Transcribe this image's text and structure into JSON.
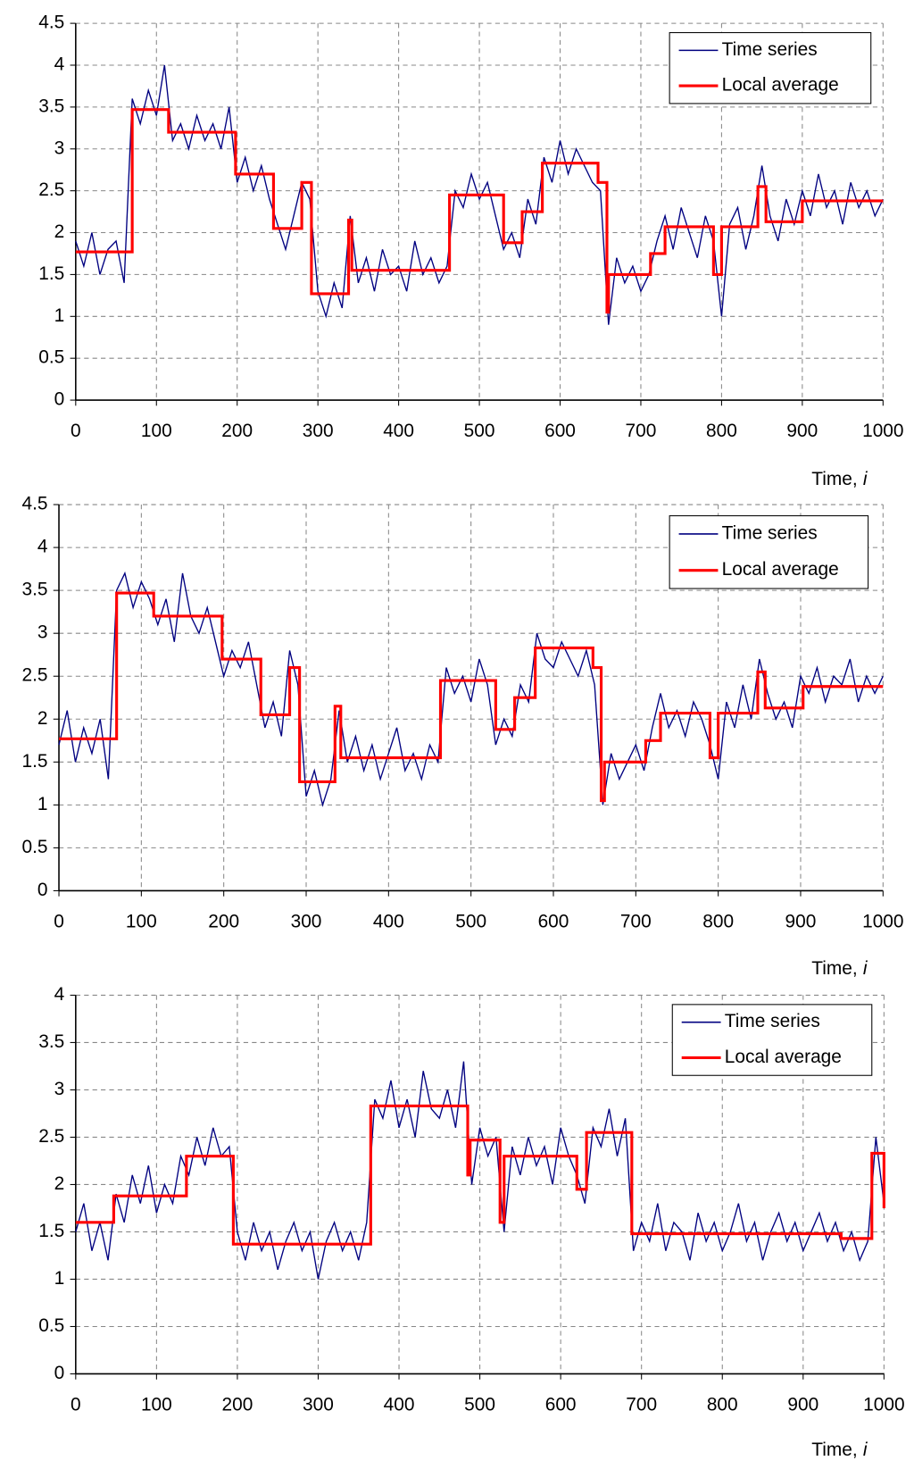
{
  "chart_data": [
    {
      "type": "line",
      "xlabel": {
        "text": "Time,",
        "variable": "i"
      },
      "xlim": [
        0,
        1000
      ],
      "xticks": [
        0,
        100,
        200,
        300,
        400,
        500,
        600,
        700,
        800,
        900,
        1000
      ],
      "ylim": [
        0,
        4.5
      ],
      "yticks": [
        0,
        0.5,
        1,
        1.5,
        2,
        2.5,
        3,
        3.5,
        4,
        4.5
      ],
      "grid": true,
      "legend": "upper right",
      "series": [
        {
          "name": "Time series",
          "color": "#000080",
          "x": [
            0,
            10,
            20,
            30,
            40,
            50,
            60,
            70,
            80,
            90,
            100,
            110,
            120,
            130,
            140,
            150,
            160,
            170,
            180,
            190,
            200,
            210,
            220,
            230,
            240,
            250,
            260,
            270,
            280,
            290,
            300,
            310,
            320,
            330,
            340,
            350,
            360,
            370,
            380,
            390,
            400,
            410,
            420,
            430,
            440,
            450,
            460,
            470,
            480,
            490,
            500,
            510,
            520,
            530,
            540,
            550,
            560,
            570,
            580,
            590,
            600,
            610,
            620,
            630,
            640,
            650,
            660,
            670,
            680,
            690,
            700,
            710,
            720,
            730,
            740,
            750,
            760,
            770,
            780,
            790,
            800,
            810,
            820,
            830,
            840,
            850,
            860,
            870,
            880,
            890,
            900,
            910,
            920,
            930,
            940,
            950,
            960,
            970,
            980,
            990,
            1000
          ],
          "values": [
            1.9,
            1.6,
            2.0,
            1.5,
            1.8,
            1.9,
            1.4,
            3.6,
            3.3,
            3.7,
            3.4,
            4.0,
            3.1,
            3.3,
            3.0,
            3.4,
            3.1,
            3.3,
            3.0,
            3.5,
            2.6,
            2.9,
            2.5,
            2.8,
            2.4,
            2.1,
            1.8,
            2.2,
            2.6,
            2.4,
            1.3,
            1.0,
            1.4,
            1.1,
            2.2,
            1.4,
            1.7,
            1.3,
            1.8,
            1.5,
            1.6,
            1.3,
            1.9,
            1.5,
            1.7,
            1.4,
            1.6,
            2.5,
            2.3,
            2.7,
            2.4,
            2.6,
            2.2,
            1.8,
            2.0,
            1.7,
            2.4,
            2.1,
            2.9,
            2.6,
            3.1,
            2.7,
            3.0,
            2.8,
            2.6,
            2.5,
            0.9,
            1.7,
            1.4,
            1.6,
            1.3,
            1.5,
            1.9,
            2.2,
            1.8,
            2.3,
            2.0,
            1.7,
            2.2,
            1.9,
            1.0,
            2.1,
            2.3,
            1.8,
            2.2,
            2.8,
            2.2,
            1.9,
            2.4,
            2.1,
            2.5,
            2.2,
            2.7,
            2.3,
            2.5,
            2.1,
            2.6,
            2.3,
            2.5,
            2.2,
            2.4
          ]
        },
        {
          "name": "Local average",
          "color": "#ff0000",
          "x": [
            0,
            70,
            70,
            115,
            115,
            198,
            198,
            245,
            245,
            280,
            280,
            292,
            292,
            338,
            338,
            342,
            342,
            463,
            463,
            530,
            530,
            553,
            553,
            578,
            578,
            647,
            647,
            658,
            658,
            660,
            660,
            712,
            712,
            730,
            730,
            790,
            790,
            800,
            800,
            845,
            845,
            855,
            855,
            900,
            900,
            1000
          ],
          "values": [
            1.77,
            1.77,
            3.47,
            3.47,
            3.2,
            3.2,
            2.7,
            2.7,
            2.05,
            2.05,
            2.6,
            2.6,
            1.27,
            1.27,
            2.15,
            2.15,
            1.55,
            1.55,
            2.45,
            2.45,
            1.88,
            1.88,
            2.25,
            2.25,
            2.83,
            2.83,
            2.6,
            2.6,
            1.05,
            1.05,
            1.5,
            1.5,
            1.75,
            1.75,
            2.07,
            2.07,
            1.5,
            1.5,
            2.07,
            2.07,
            2.55,
            2.55,
            2.13,
            2.13,
            2.38,
            2.38
          ]
        }
      ]
    },
    {
      "type": "line",
      "xlabel": {
        "text": "Time,",
        "variable": "i"
      },
      "xlim": [
        0,
        1000
      ],
      "xticks": [
        0,
        100,
        200,
        300,
        400,
        500,
        600,
        700,
        800,
        900,
        1000
      ],
      "ylim": [
        0,
        4.5
      ],
      "yticks": [
        0,
        0.5,
        1,
        1.5,
        2,
        2.5,
        3,
        3.5,
        4,
        4.5
      ],
      "grid": true,
      "legend": "upper right",
      "series": [
        {
          "name": "Time series",
          "color": "#000080",
          "x": [
            0,
            10,
            20,
            30,
            40,
            50,
            60,
            70,
            80,
            90,
            100,
            110,
            120,
            130,
            140,
            150,
            160,
            170,
            180,
            190,
            200,
            210,
            220,
            230,
            240,
            250,
            260,
            270,
            280,
            290,
            300,
            310,
            320,
            330,
            340,
            350,
            360,
            370,
            380,
            390,
            400,
            410,
            420,
            430,
            440,
            450,
            460,
            470,
            480,
            490,
            500,
            510,
            520,
            530,
            540,
            550,
            560,
            570,
            580,
            590,
            600,
            610,
            620,
            630,
            640,
            650,
            660,
            670,
            680,
            690,
            700,
            710,
            720,
            730,
            740,
            750,
            760,
            770,
            780,
            790,
            800,
            810,
            820,
            830,
            840,
            850,
            860,
            870,
            880,
            890,
            900,
            910,
            920,
            930,
            940,
            950,
            960,
            970,
            980,
            990,
            1000
          ],
          "values": [
            1.7,
            2.1,
            1.5,
            1.9,
            1.6,
            2.0,
            1.3,
            3.5,
            3.7,
            3.3,
            3.6,
            3.4,
            3.1,
            3.4,
            2.9,
            3.7,
            3.2,
            3.0,
            3.3,
            2.9,
            2.5,
            2.8,
            2.6,
            2.9,
            2.4,
            1.9,
            2.2,
            1.8,
            2.8,
            2.4,
            1.1,
            1.4,
            1.0,
            1.3,
            2.1,
            1.5,
            1.8,
            1.4,
            1.7,
            1.3,
            1.6,
            1.9,
            1.4,
            1.6,
            1.3,
            1.7,
            1.5,
            2.6,
            2.3,
            2.5,
            2.2,
            2.7,
            2.4,
            1.7,
            2.0,
            1.8,
            2.4,
            2.2,
            3.0,
            2.7,
            2.6,
            2.9,
            2.7,
            2.5,
            2.8,
            2.4,
            1.0,
            1.6,
            1.3,
            1.5,
            1.7,
            1.4,
            1.9,
            2.3,
            1.9,
            2.1,
            1.8,
            2.2,
            2.0,
            1.7,
            1.3,
            2.2,
            1.9,
            2.4,
            2.0,
            2.7,
            2.3,
            2.0,
            2.2,
            1.9,
            2.5,
            2.3,
            2.6,
            2.2,
            2.5,
            2.4,
            2.7,
            2.2,
            2.5,
            2.3,
            2.5
          ]
        },
        {
          "name": "Local average",
          "color": "#ff0000",
          "x": [
            0,
            70,
            70,
            115,
            115,
            198,
            198,
            245,
            245,
            280,
            280,
            292,
            292,
            335,
            335,
            342,
            342,
            463,
            463,
            530,
            530,
            553,
            553,
            578,
            578,
            648,
            648,
            658,
            658,
            662,
            662,
            712,
            712,
            730,
            730,
            790,
            790,
            800,
            800,
            848,
            848,
            857,
            857,
            903,
            903,
            1000
          ],
          "values": [
            1.77,
            1.77,
            3.47,
            3.47,
            3.2,
            3.2,
            2.7,
            2.7,
            2.05,
            2.05,
            2.6,
            2.6,
            1.27,
            1.27,
            2.15,
            2.15,
            1.55,
            1.55,
            2.45,
            2.45,
            1.88,
            1.88,
            2.25,
            2.25,
            2.83,
            2.83,
            2.6,
            2.6,
            1.05,
            1.05,
            1.5,
            1.5,
            1.75,
            1.75,
            2.07,
            2.07,
            1.55,
            1.55,
            2.07,
            2.07,
            2.55,
            2.55,
            2.13,
            2.13,
            2.38,
            2.38
          ]
        }
      ]
    },
    {
      "type": "line",
      "xlabel": {
        "text": "Time,",
        "variable": "i"
      },
      "xlim": [
        0,
        1000
      ],
      "xticks": [
        0,
        100,
        200,
        300,
        400,
        500,
        600,
        700,
        800,
        900,
        1000
      ],
      "ylim": [
        0,
        4
      ],
      "yticks": [
        0,
        0.5,
        1,
        1.5,
        2,
        2.5,
        3,
        3.5,
        4
      ],
      "grid": true,
      "legend": "upper right",
      "series": [
        {
          "name": "Time series",
          "color": "#000080",
          "x": [
            0,
            10,
            20,
            30,
            40,
            50,
            60,
            70,
            80,
            90,
            100,
            110,
            120,
            130,
            140,
            150,
            160,
            170,
            180,
            190,
            200,
            210,
            220,
            230,
            240,
            250,
            260,
            270,
            280,
            290,
            300,
            310,
            320,
            330,
            340,
            350,
            360,
            370,
            380,
            390,
            400,
            410,
            420,
            430,
            440,
            450,
            460,
            470,
            480,
            490,
            500,
            510,
            520,
            530,
            540,
            550,
            560,
            570,
            580,
            590,
            600,
            610,
            620,
            630,
            640,
            650,
            660,
            670,
            680,
            690,
            700,
            710,
            720,
            730,
            740,
            750,
            760,
            770,
            780,
            790,
            800,
            810,
            820,
            830,
            840,
            850,
            860,
            870,
            880,
            890,
            900,
            910,
            920,
            930,
            940,
            950,
            960,
            970,
            980,
            990,
            1000
          ],
          "values": [
            1.5,
            1.8,
            1.3,
            1.6,
            1.2,
            1.9,
            1.6,
            2.1,
            1.8,
            2.2,
            1.7,
            2.0,
            1.8,
            2.3,
            2.1,
            2.5,
            2.2,
            2.6,
            2.3,
            2.4,
            1.5,
            1.2,
            1.6,
            1.3,
            1.5,
            1.1,
            1.4,
            1.6,
            1.3,
            1.5,
            1.0,
            1.4,
            1.6,
            1.3,
            1.5,
            1.2,
            1.6,
            2.9,
            2.7,
            3.1,
            2.6,
            2.9,
            2.5,
            3.2,
            2.8,
            2.7,
            3.0,
            2.6,
            3.3,
            2.0,
            2.6,
            2.3,
            2.5,
            1.5,
            2.4,
            2.1,
            2.5,
            2.2,
            2.4,
            2.0,
            2.6,
            2.3,
            2.1,
            1.8,
            2.6,
            2.4,
            2.8,
            2.3,
            2.7,
            1.3,
            1.6,
            1.4,
            1.8,
            1.3,
            1.6,
            1.5,
            1.2,
            1.7,
            1.4,
            1.6,
            1.3,
            1.5,
            1.8,
            1.4,
            1.6,
            1.2,
            1.5,
            1.7,
            1.4,
            1.6,
            1.3,
            1.5,
            1.7,
            1.4,
            1.6,
            1.3,
            1.5,
            1.2,
            1.4,
            2.5,
            1.8
          ]
        },
        {
          "name": "Local average",
          "color": "#ff0000",
          "x": [
            0,
            47,
            47,
            137,
            137,
            195,
            195,
            365,
            365,
            485,
            485,
            488,
            488,
            525,
            525,
            530,
            530,
            620,
            620,
            632,
            632,
            688,
            688,
            947,
            947,
            985,
            985,
            1000,
            1000
          ],
          "values": [
            1.6,
            1.6,
            1.88,
            1.88,
            2.3,
            2.3,
            1.37,
            1.37,
            2.83,
            2.83,
            2.1,
            2.1,
            2.47,
            2.47,
            1.6,
            1.6,
            2.3,
            2.3,
            1.95,
            1.95,
            2.55,
            2.55,
            1.48,
            1.48,
            1.43,
            1.43,
            2.33,
            2.33,
            1.75
          ]
        }
      ]
    }
  ]
}
